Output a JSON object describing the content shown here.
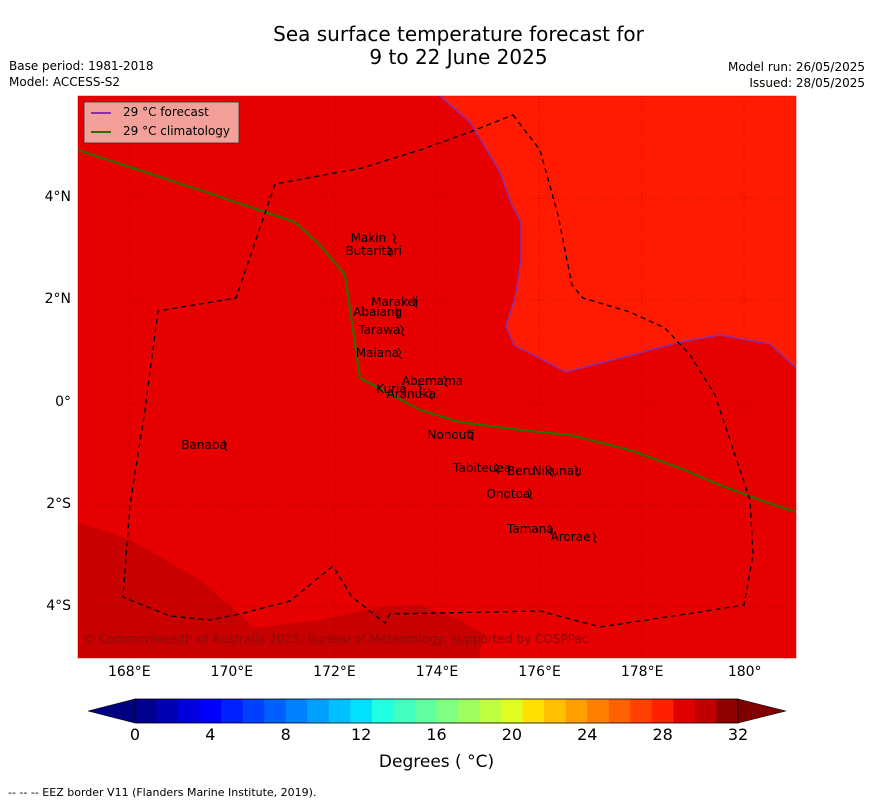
{
  "header": {
    "title_line1": "Sea surface temperature forecast for",
    "title_line2": "9 to 22 June 2025",
    "base_period": "Base period: 1981-2018",
    "model": "Model: ACCESS-S2",
    "model_run": "Model run: 26/05/2025",
    "issued": "Issued: 28/05/2025"
  },
  "map": {
    "lon_range": [
      167,
      181
    ],
    "lat_range": [
      -5,
      6
    ],
    "lon_ticks": [
      {
        "value": 168,
        "label": "168°E"
      },
      {
        "value": 170,
        "label": "170°E"
      },
      {
        "value": 172,
        "label": "172°E"
      },
      {
        "value": 174,
        "label": "174°E"
      },
      {
        "value": 176,
        "label": "176°E"
      },
      {
        "value": 178,
        "label": "178°E"
      },
      {
        "value": 180,
        "label": "180°"
      }
    ],
    "lat_ticks": [
      {
        "value": 4,
        "label": "4°N"
      },
      {
        "value": 2,
        "label": "2°N"
      },
      {
        "value": 0,
        "label": "0°"
      },
      {
        "value": -2,
        "label": "2°S"
      },
      {
        "value": -4,
        "label": "4°S"
      }
    ],
    "legend": {
      "placement": "top-left",
      "forecast_label": "29 °C  forecast",
      "forecast_color": "#8c2ea8",
      "climatology_label": "29 °C  climatology",
      "climatology_color": "#2e6b00"
    },
    "colors": {
      "warm_core": "#ff1a00",
      "base": "#e60000",
      "cool": "#c80000"
    },
    "islands": [
      {
        "name": "Makin",
        "lon": 172.9,
        "lat": 3.2
      },
      {
        "name": "Butaritari",
        "lon": 172.8,
        "lat": 2.95
      },
      {
        "name": "Marakei",
        "lon": 173.3,
        "lat": 1.95
      },
      {
        "name": "Abaiang",
        "lon": 172.95,
        "lat": 1.75
      },
      {
        "name": "Tarawa",
        "lon": 173.05,
        "lat": 1.4
      },
      {
        "name": "Maiana",
        "lon": 173.0,
        "lat": 0.95
      },
      {
        "name": "Abemama",
        "lon": 173.9,
        "lat": 0.4
      },
      {
        "name": "Kuria",
        "lon": 173.4,
        "lat": 0.25
      },
      {
        "name": "Aranuka",
        "lon": 173.6,
        "lat": 0.15
      },
      {
        "name": "Nonouti",
        "lon": 174.4,
        "lat": -0.65
      },
      {
        "name": "Banaba",
        "lon": 169.6,
        "lat": -0.85
      },
      {
        "name": "Beru",
        "lon": 175.95,
        "lat": -1.35
      },
      {
        "name": "Nikunau",
        "lon": 176.45,
        "lat": -1.35
      },
      {
        "name": "Tabiteuea",
        "lon": 174.9,
        "lat": -1.3
      },
      {
        "name": "Onotoa",
        "lon": 175.55,
        "lat": -1.8
      },
      {
        "name": "Tamana",
        "lon": 175.95,
        "lat": -2.5
      },
      {
        "name": "Arorae",
        "lon": 176.8,
        "lat": -2.65
      }
    ],
    "copyright": "© Commonwealth of Australia 2025, Bureau of Meteorology, supported by COSPPac"
  },
  "colorbar": {
    "colors": [
      "#00008c",
      "#0000b4",
      "#0000dc",
      "#0000ff",
      "#0020ff",
      "#0040ff",
      "#0060ff",
      "#0080ff",
      "#00a0ff",
      "#00c0ff",
      "#00e0ff",
      "#20ffe0",
      "#40ffc0",
      "#60ffa0",
      "#80ff80",
      "#a0ff60",
      "#c0ff40",
      "#e0ff20",
      "#ffe000",
      "#ffc000",
      "#ffa000",
      "#ff8000",
      "#ff6000",
      "#ff4000",
      "#ff2000",
      "#e00000",
      "#c00000",
      "#900000"
    ],
    "under_color": "#000080",
    "over_color": "#800000",
    "range": [
      0,
      32
    ],
    "ticks": [
      {
        "value": 0,
        "label": "0"
      },
      {
        "value": 4,
        "label": "4"
      },
      {
        "value": 8,
        "label": "8"
      },
      {
        "value": 12,
        "label": "12"
      },
      {
        "value": 16,
        "label": "16"
      },
      {
        "value": 20,
        "label": "20"
      },
      {
        "value": 24,
        "label": "24"
      },
      {
        "value": 28,
        "label": "28"
      },
      {
        "value": 32,
        "label": "32"
      }
    ],
    "label": "Degrees ( °C)"
  },
  "footer": {
    "eez_note": "--  --  -- EEZ border V11 (Flanders Marine Institute, 2019)."
  }
}
